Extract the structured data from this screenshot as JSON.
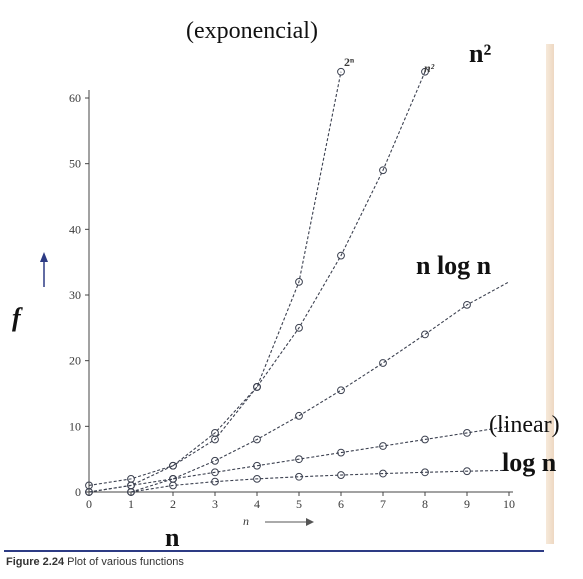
{
  "chart_data": {
    "type": "line",
    "caption_number": "Figure 2.24",
    "caption_text": "Plot of various functions",
    "xlabel": "n",
    "ylabel": "f",
    "xlim": [
      0,
      10
    ],
    "ylim": [
      0,
      64
    ],
    "x_ticks": [
      "0",
      "1",
      "2",
      "3",
      "4",
      "5",
      "6",
      "7",
      "8",
      "9",
      "10"
    ],
    "y_ticks": [
      "0",
      "10",
      "20",
      "30",
      "40",
      "50",
      "60"
    ],
    "grid": false,
    "series": [
      {
        "name": "2ⁿ",
        "x": [
          0,
          1,
          2,
          3,
          4,
          5,
          6
        ],
        "values": [
          1,
          2,
          4,
          8,
          16,
          32,
          64
        ],
        "line_to": [
          6,
          64
        ]
      },
      {
        "name": "n²",
        "x": [
          0,
          1,
          2,
          3,
          4,
          5,
          6,
          7,
          8
        ],
        "values": [
          0,
          1,
          4,
          9,
          16,
          25,
          36,
          49,
          64
        ],
        "line_to": [
          8,
          64
        ]
      },
      {
        "name": "",
        "x": [
          1,
          2,
          3,
          4,
          5,
          6,
          7,
          8,
          9
        ],
        "values": [
          0,
          2,
          4.75,
          8,
          11.6,
          15.5,
          19.65,
          24,
          28.5
        ],
        "line_to": [
          10,
          32
        ]
      },
      {
        "name": "",
        "x": [
          0,
          1,
          2,
          3,
          4,
          5,
          6,
          7,
          8,
          9
        ],
        "values": [
          0,
          1,
          2,
          3,
          4,
          5,
          6,
          7,
          8,
          9
        ],
        "line_to": [
          10,
          10
        ]
      },
      {
        "name": "",
        "x": [
          1,
          2,
          3,
          4,
          5,
          6,
          7,
          8,
          9
        ],
        "values": [
          0,
          1,
          1.58,
          2,
          2.32,
          2.58,
          2.81,
          3,
          3.17
        ],
        "line_to": [
          10,
          3.3
        ]
      }
    ],
    "annotations": {
      "exponential": "(exponencial)",
      "quadratic": "n²",
      "nlogn": "n log n",
      "linear": "(linear)",
      "logn": "log n",
      "n_axis": "n"
    }
  }
}
